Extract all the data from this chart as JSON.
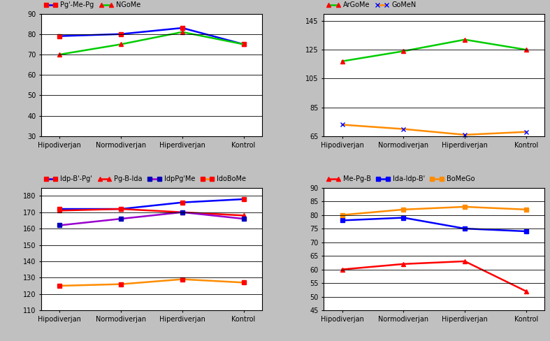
{
  "categories": [
    "Hipodiverjan",
    "Normodiverjan",
    "Hiperdiverjan",
    "Kontrol"
  ],
  "subplot1": {
    "ylim": [
      30,
      90
    ],
    "yticks": [
      30,
      40,
      50,
      60,
      70,
      80,
      90
    ],
    "series": [
      {
        "label": "Pg'-Me-Pg",
        "color": "#0000FF",
        "marker": "s",
        "marker_color": "#FF0000",
        "values": [
          79,
          80,
          83,
          75
        ]
      },
      {
        "label": "NGoMe",
        "color": "#00CC00",
        "marker": "^",
        "marker_color": "#FF0000",
        "values": [
          70,
          75,
          81,
          75
        ]
      }
    ]
  },
  "subplot2": {
    "ylim": [
      65,
      150
    ],
    "yticks": [
      65,
      85,
      105,
      125,
      145
    ],
    "series": [
      {
        "label": "ArGoMe",
        "color": "#00CC00",
        "marker": "^",
        "marker_color": "#FF0000",
        "values": [
          117,
          124,
          132,
          125
        ]
      },
      {
        "label": "GoMeN",
        "color": "#FF8C00",
        "marker": "x",
        "marker_color": "#0000FF",
        "values": [
          73,
          70,
          66,
          68
        ]
      }
    ]
  },
  "subplot3": {
    "ylim": [
      110,
      185
    ],
    "yticks": [
      110,
      120,
      130,
      140,
      150,
      160,
      170,
      180
    ],
    "series": [
      {
        "label": "Idp-B'-Pg'",
        "color": "#0000FF",
        "marker": "s",
        "marker_color": "#FF0000",
        "values": [
          172,
          172,
          176,
          178
        ]
      },
      {
        "label": "Pg-B-Ida",
        "color": "#FF0000",
        "marker": "^",
        "marker_color": "#FF0000",
        "values": [
          171,
          172,
          170,
          168
        ]
      },
      {
        "label": "IdpPg'Me",
        "color": "#9900CC",
        "marker": "s",
        "marker_color": "#0000BB",
        "values": [
          162,
          166,
          170,
          166
        ]
      },
      {
        "label": "IdoBoMe",
        "color": "#FF8C00",
        "marker": "s",
        "marker_color": "#FF0000",
        "values": [
          125,
          126,
          129,
          127
        ]
      }
    ]
  },
  "subplot4": {
    "ylim": [
      45,
      90
    ],
    "yticks": [
      45,
      50,
      55,
      60,
      65,
      70,
      75,
      80,
      85,
      90
    ],
    "series": [
      {
        "label": "Me-Pg-B",
        "color": "#FF0000",
        "marker": "^",
        "marker_color": "#FF0000",
        "values": [
          60,
          62,
          63,
          52
        ]
      },
      {
        "label": "Ida-Idp-B'",
        "color": "#0000FF",
        "marker": "s",
        "marker_color": "#0000FF",
        "values": [
          78,
          79,
          75,
          74
        ]
      },
      {
        "label": "BoMeGo",
        "color": "#FF8C00",
        "marker": "s",
        "marker_color": "#FF8C00",
        "values": [
          80,
          82,
          83,
          82
        ]
      }
    ]
  },
  "bg_color": "#C0C0C0",
  "plot_bg_color": "#FFFFFF",
  "legend_fontsize": 7,
  "tick_fontsize": 7,
  "linewidth": 1.8,
  "markersize": 4
}
